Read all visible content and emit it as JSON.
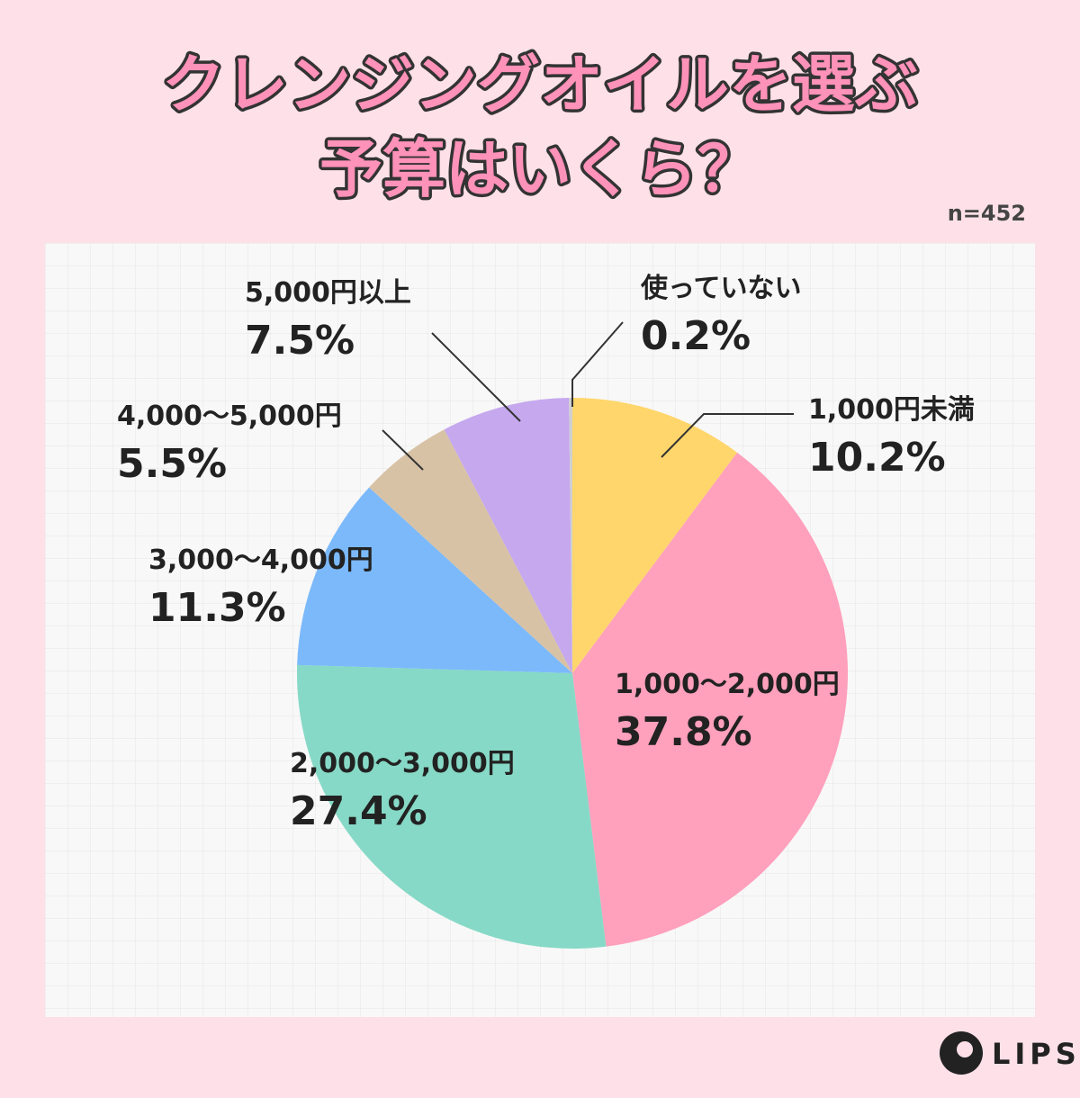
{
  "chart_data": {
    "type": "pie",
    "title": [
      "クレンジングオイルを選ぶ",
      "予算はいくら？"
    ],
    "sample_size": "n=452",
    "brand": "LIPS",
    "categories": [
      "1,000円未満",
      "1,000〜2,000円",
      "2,000〜3,000円",
      "3,000〜4,000円",
      "4,000〜5,000円",
      "5,000円以上",
      "使っていない"
    ],
    "values": [
      10.2,
      37.8,
      27.4,
      11.3,
      5.5,
      7.5,
      0.2
    ],
    "value_labels": [
      "10.2%",
      "37.8%",
      "27.4%",
      "11.3%",
      "5.5%",
      "7.5%",
      "0.2%"
    ],
    "colors": [
      "#ffd66b",
      "#ffa0bc",
      "#86d9c6",
      "#7bb9fb",
      "#d8c2a5",
      "#c5a8ee",
      "#cfcfcf"
    ]
  }
}
